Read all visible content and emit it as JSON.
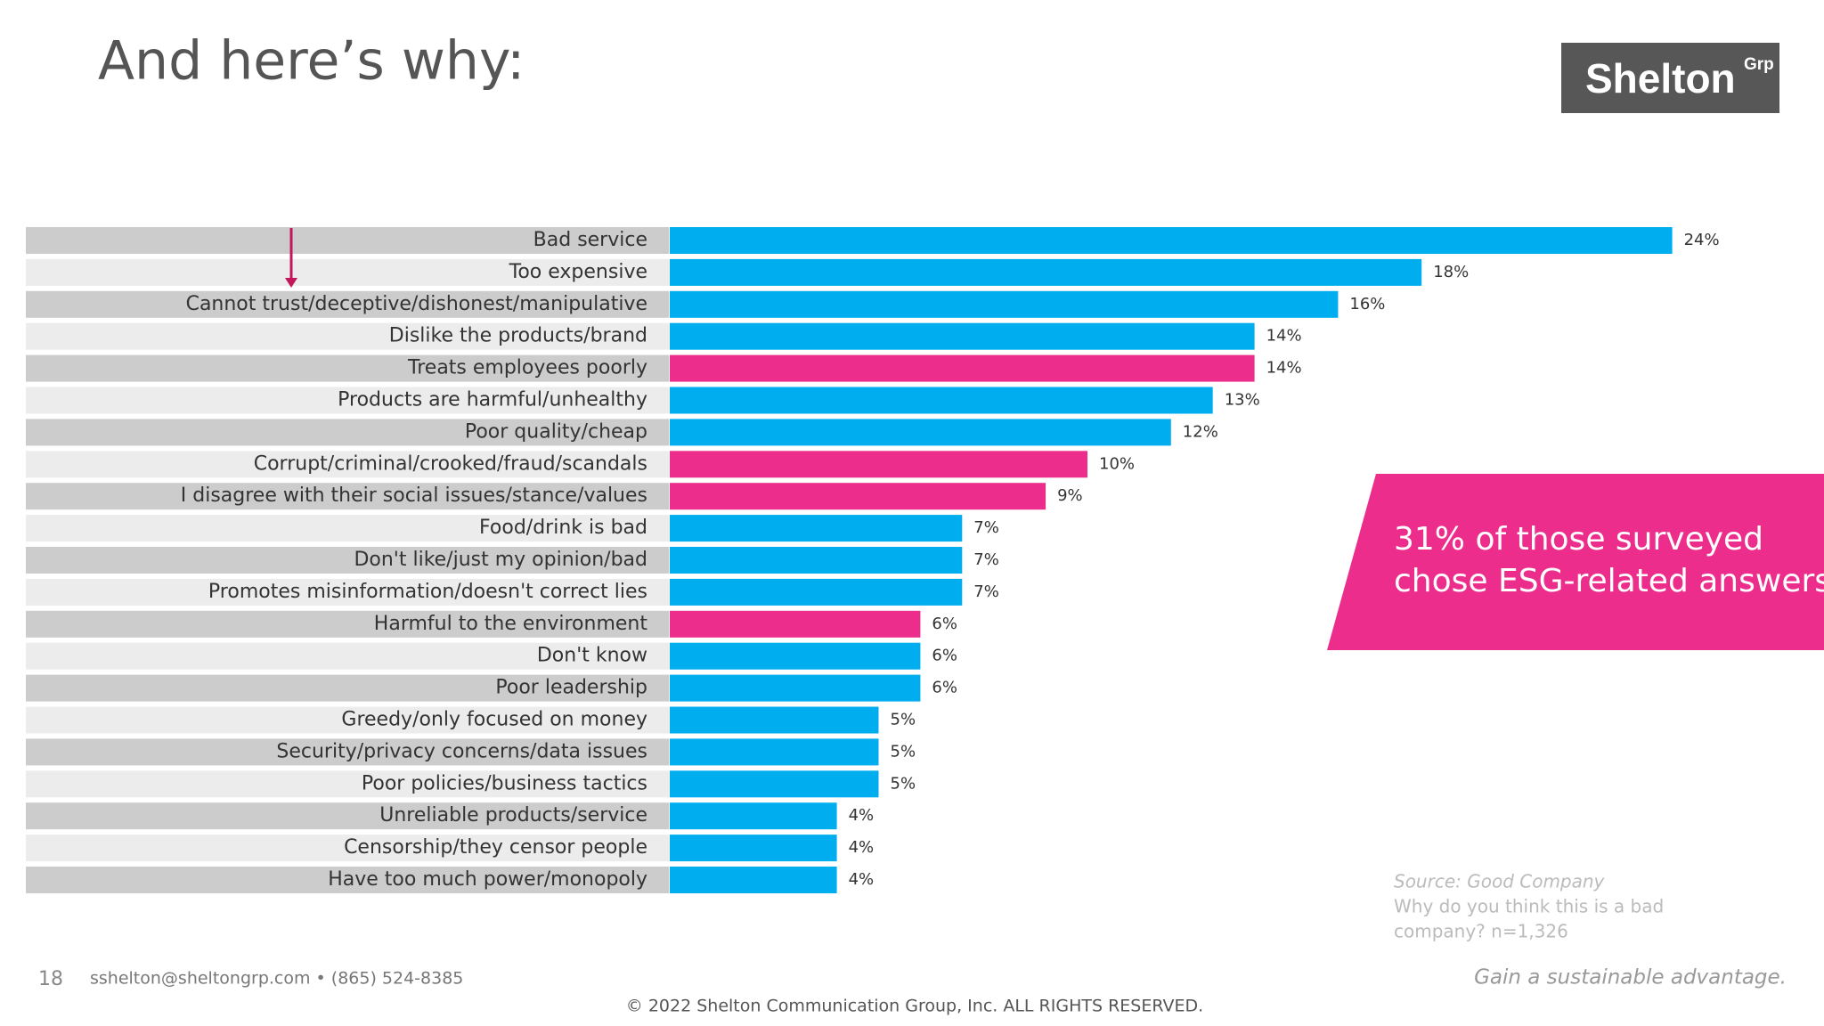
{
  "chart_data": {
    "type": "bar",
    "orientation": "horizontal",
    "title": "And here’s why:",
    "categories": [
      "Bad service",
      "Too expensive",
      "Cannot trust/deceptive/dishonest/manipulative",
      "Dislike the products/brand",
      "Treats employees poorly",
      "Products are harmful/unhealthy",
      "Poor quality/cheap",
      "Corrupt/criminal/crooked/fraud/scandals",
      "I disagree with their social issues/stance/values",
      "Food/drink is bad",
      "Don't like/just my opinion/bad",
      "Promotes misinformation/doesn't correct lies",
      "Harmful to the environment",
      "Don't know",
      "Poor leadership",
      "Greedy/only focused on money",
      "Security/privacy concerns/data issues",
      "Poor policies/business tactics",
      "Unreliable products/service",
      "Censorship/they censor people",
      "Have too much power/monopoly"
    ],
    "values": [
      24,
      18,
      16,
      14,
      14,
      13,
      12,
      10,
      9,
      7,
      7,
      7,
      6,
      6,
      6,
      5,
      5,
      5,
      4,
      4,
      4
    ],
    "value_labels": [
      "24%",
      "18%",
      "16%",
      "14%",
      "14%",
      "13%",
      "12%",
      "10%",
      "9%",
      "7%",
      "7%",
      "7%",
      "6%",
      "6%",
      "6%",
      "5%",
      "5%",
      "5%",
      "4%",
      "4%",
      "4%"
    ],
    "colors": [
      "#00aeef",
      "#00aeef",
      "#00aeef",
      "#00aeef",
      "#ec2d8c",
      "#00aeef",
      "#00aeef",
      "#ec2d8c",
      "#ec2d8c",
      "#00aeef",
      "#00aeef",
      "#00aeef",
      "#ec2d8c",
      "#00aeef",
      "#00aeef",
      "#00aeef",
      "#00aeef",
      "#00aeef",
      "#00aeef",
      "#00aeef",
      "#00aeef"
    ]
  },
  "logo": {
    "name": "Shelton",
    "suffix": "Grp"
  },
  "callout": {
    "lines": [
      "31% of those surveyed",
      "chose ESG-related answers"
    ]
  },
  "source": {
    "lines": [
      "Source: Good Company",
      "Why do you think this is a bad",
      "company? n=1,326"
    ]
  },
  "footer": {
    "page": "18",
    "contact": "sshelton@sheltongrp.com • (865) 524-8385",
    "copyright": "© 2022 Shelton Communication Group, Inc.  ALL RIGHTS RESERVED.",
    "tagline": "Gain a sustainable advantage."
  }
}
